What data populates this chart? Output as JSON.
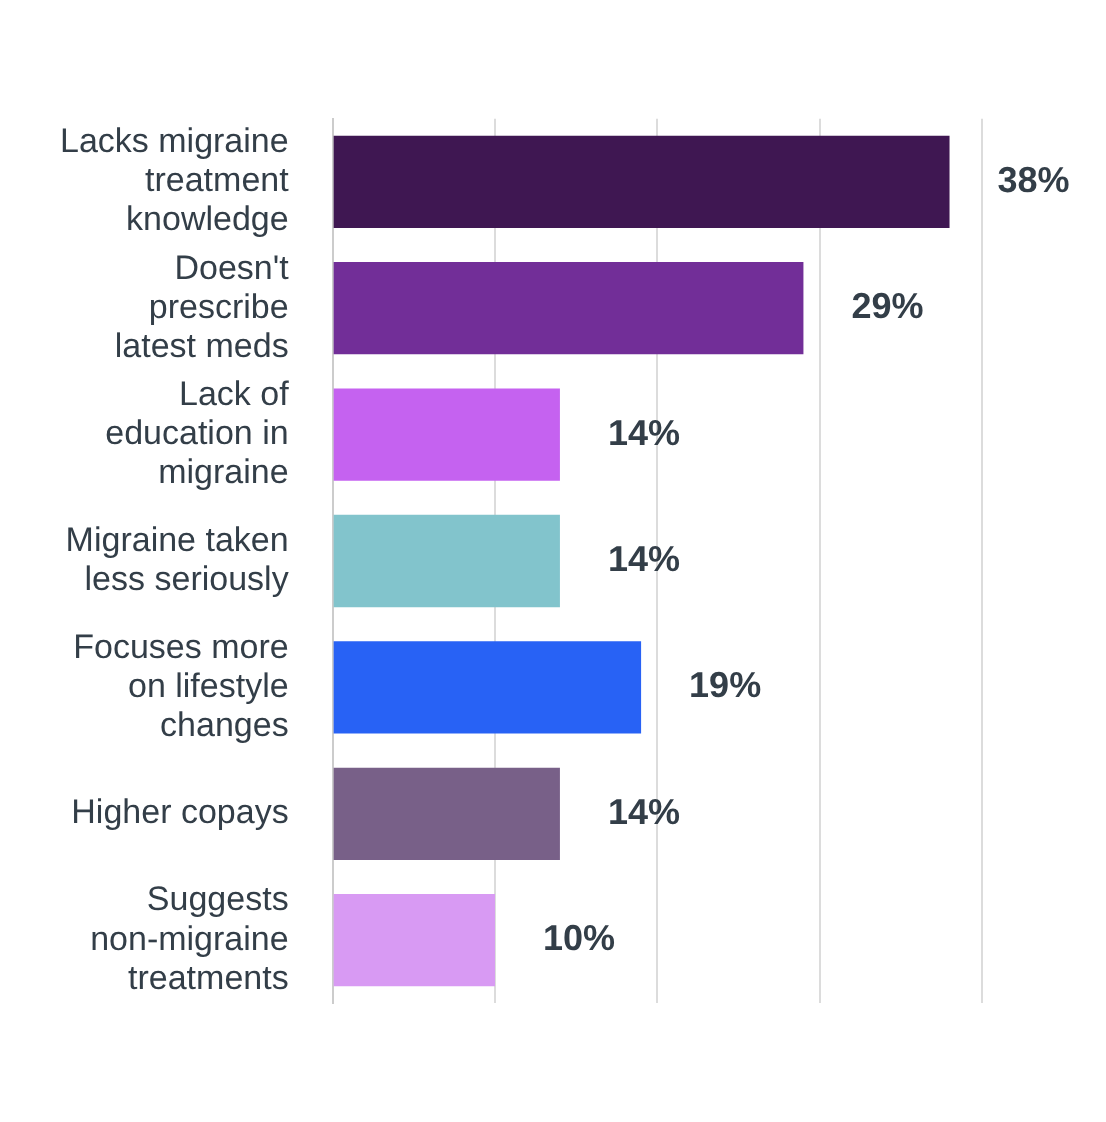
{
  "chart_data": {
    "type": "bar",
    "orientation": "horizontal",
    "categories": [
      "Lacks migraine treatment knowledge",
      "Doesn't prescribe latest meds",
      "Lack of education in migraine",
      "Migraine taken less seriously",
      "Focuses more on lifestyle changes",
      "Higher copays",
      "Suggests non-migraine treatments"
    ],
    "values": [
      38,
      29,
      14,
      14,
      19,
      14,
      10
    ],
    "colors": [
      "#3f1752",
      "#722e98",
      "#c562f0",
      "#82c4cc",
      "#2862f5",
      "#786088",
      "#d89af3"
    ],
    "value_labels": [
      "38%",
      "29%",
      "14%",
      "14%",
      "19%",
      "14%",
      "10%"
    ],
    "xlim": [
      0,
      40
    ],
    "xticks": [
      {
        "value": 0,
        "label": null
      },
      {
        "value": 10,
        "label": null
      },
      {
        "value": 20,
        "label": null
      },
      {
        "value": 30,
        "label": null
      },
      {
        "value": 40,
        "label": null
      }
    ],
    "grid": "x",
    "tick_labels": "y",
    "legend": false
  }
}
